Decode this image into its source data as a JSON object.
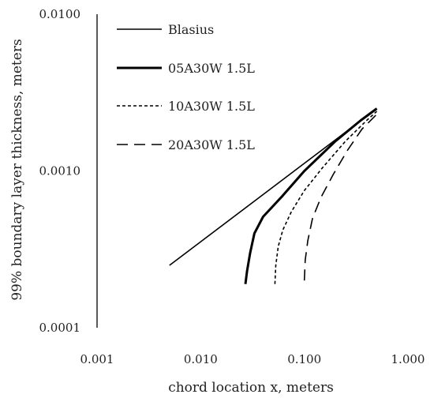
{
  "chart_data": {
    "type": "line",
    "xscale": "log",
    "yscale": "log",
    "xlim": [
      0.001,
      1.0
    ],
    "ylim": [
      0.0001,
      0.01
    ],
    "xlabel": "chord location x, meters",
    "ylabel": "99% boundary layer thickness, meters",
    "x_tick_labels": [
      "0.001",
      "0.010",
      "0.100",
      "1.000"
    ],
    "y_tick_labels": [
      "0.0001",
      "0.0010",
      "0.0100"
    ],
    "grid": false,
    "legend_position": "top-left",
    "series": [
      {
        "name": "Blasius",
        "line_style": "solid-thin",
        "color": "#000000",
        "x": [
          0.005,
          0.5
        ],
        "y": [
          0.00025,
          0.0025
        ]
      },
      {
        "name": "05A30W 1.5L",
        "line_style": "solid-thick",
        "color": "#000000",
        "x": [
          0.027,
          0.028,
          0.03,
          0.033,
          0.04,
          0.06,
          0.1,
          0.2,
          0.35,
          0.5
        ],
        "y": [
          0.00019,
          0.00023,
          0.0003,
          0.0004,
          0.00051,
          0.00068,
          0.001,
          0.00155,
          0.0021,
          0.0025
        ]
      },
      {
        "name": "10A30W 1.5L",
        "line_style": "dotted",
        "color": "#000000",
        "x": [
          0.052,
          0.053,
          0.056,
          0.062,
          0.075,
          0.1,
          0.15,
          0.25,
          0.4,
          0.5
        ],
        "y": [
          0.00019,
          0.00025,
          0.00033,
          0.00042,
          0.00055,
          0.00075,
          0.00105,
          0.00155,
          0.0021,
          0.0024
        ]
      },
      {
        "name": "20A30W 1.5L",
        "line_style": "dashed",
        "color": "#000000",
        "x": [
          0.1,
          0.102,
          0.108,
          0.12,
          0.145,
          0.19,
          0.26,
          0.36,
          0.5
        ],
        "y": [
          0.0002,
          0.00027,
          0.00036,
          0.0005,
          0.00068,
          0.00095,
          0.00135,
          0.00185,
          0.0023
        ]
      }
    ]
  }
}
